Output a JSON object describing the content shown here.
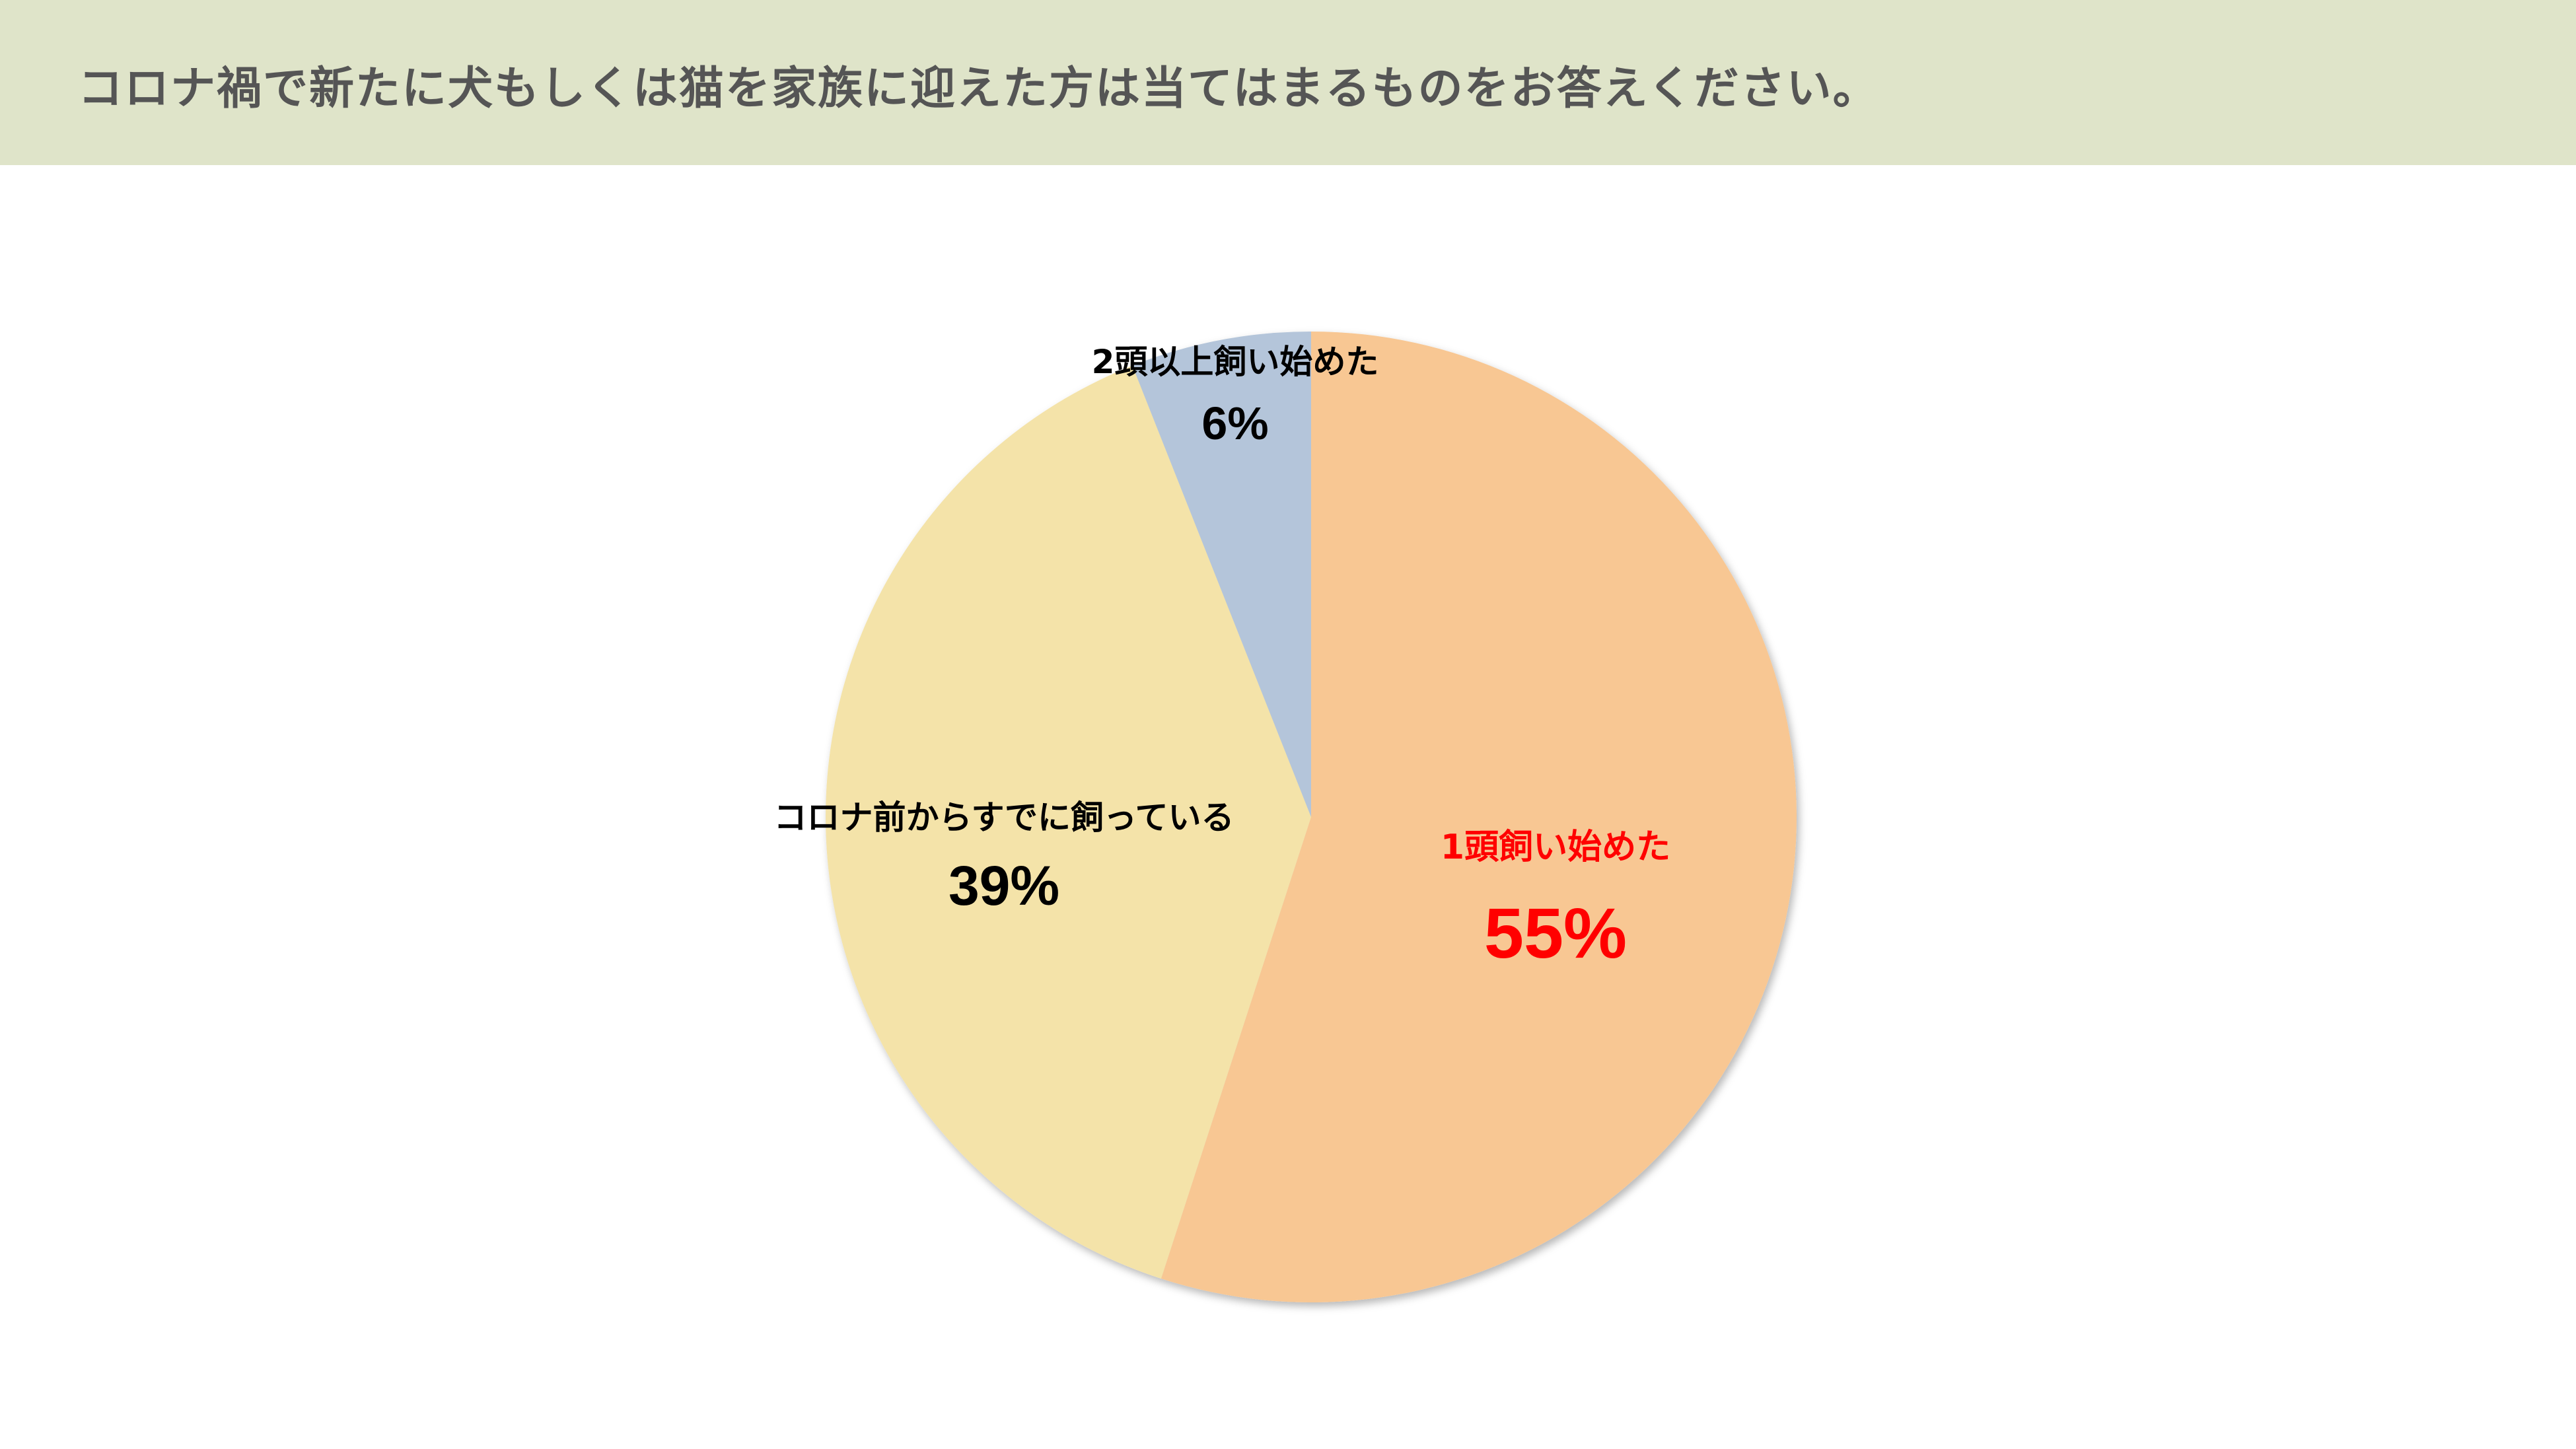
{
  "header": {
    "question": "コロナ禍で新たに犬もしくは猫を家族に迎えた方は当てはまるものをお答えください。",
    "background_color": "#dfe4c9",
    "text_color": "#555555"
  },
  "chart_data": {
    "type": "pie",
    "title": "",
    "start_angle_deg": 0,
    "direction": "clockwise",
    "slices": [
      {
        "label": "1頭飼い始めた",
        "value": 55,
        "value_label": "55%",
        "color": "#f8c793",
        "label_color": "#ff0000"
      },
      {
        "label": "コロナ前からすでに飼っている",
        "value": 39,
        "value_label": "39%",
        "color": "#f4e3a9",
        "label_color": "#000000"
      },
      {
        "label": "2頭以上飼い始めた",
        "value": 6,
        "value_label": "6%",
        "color": "#b4c5da",
        "label_color": "#000000"
      }
    ]
  }
}
